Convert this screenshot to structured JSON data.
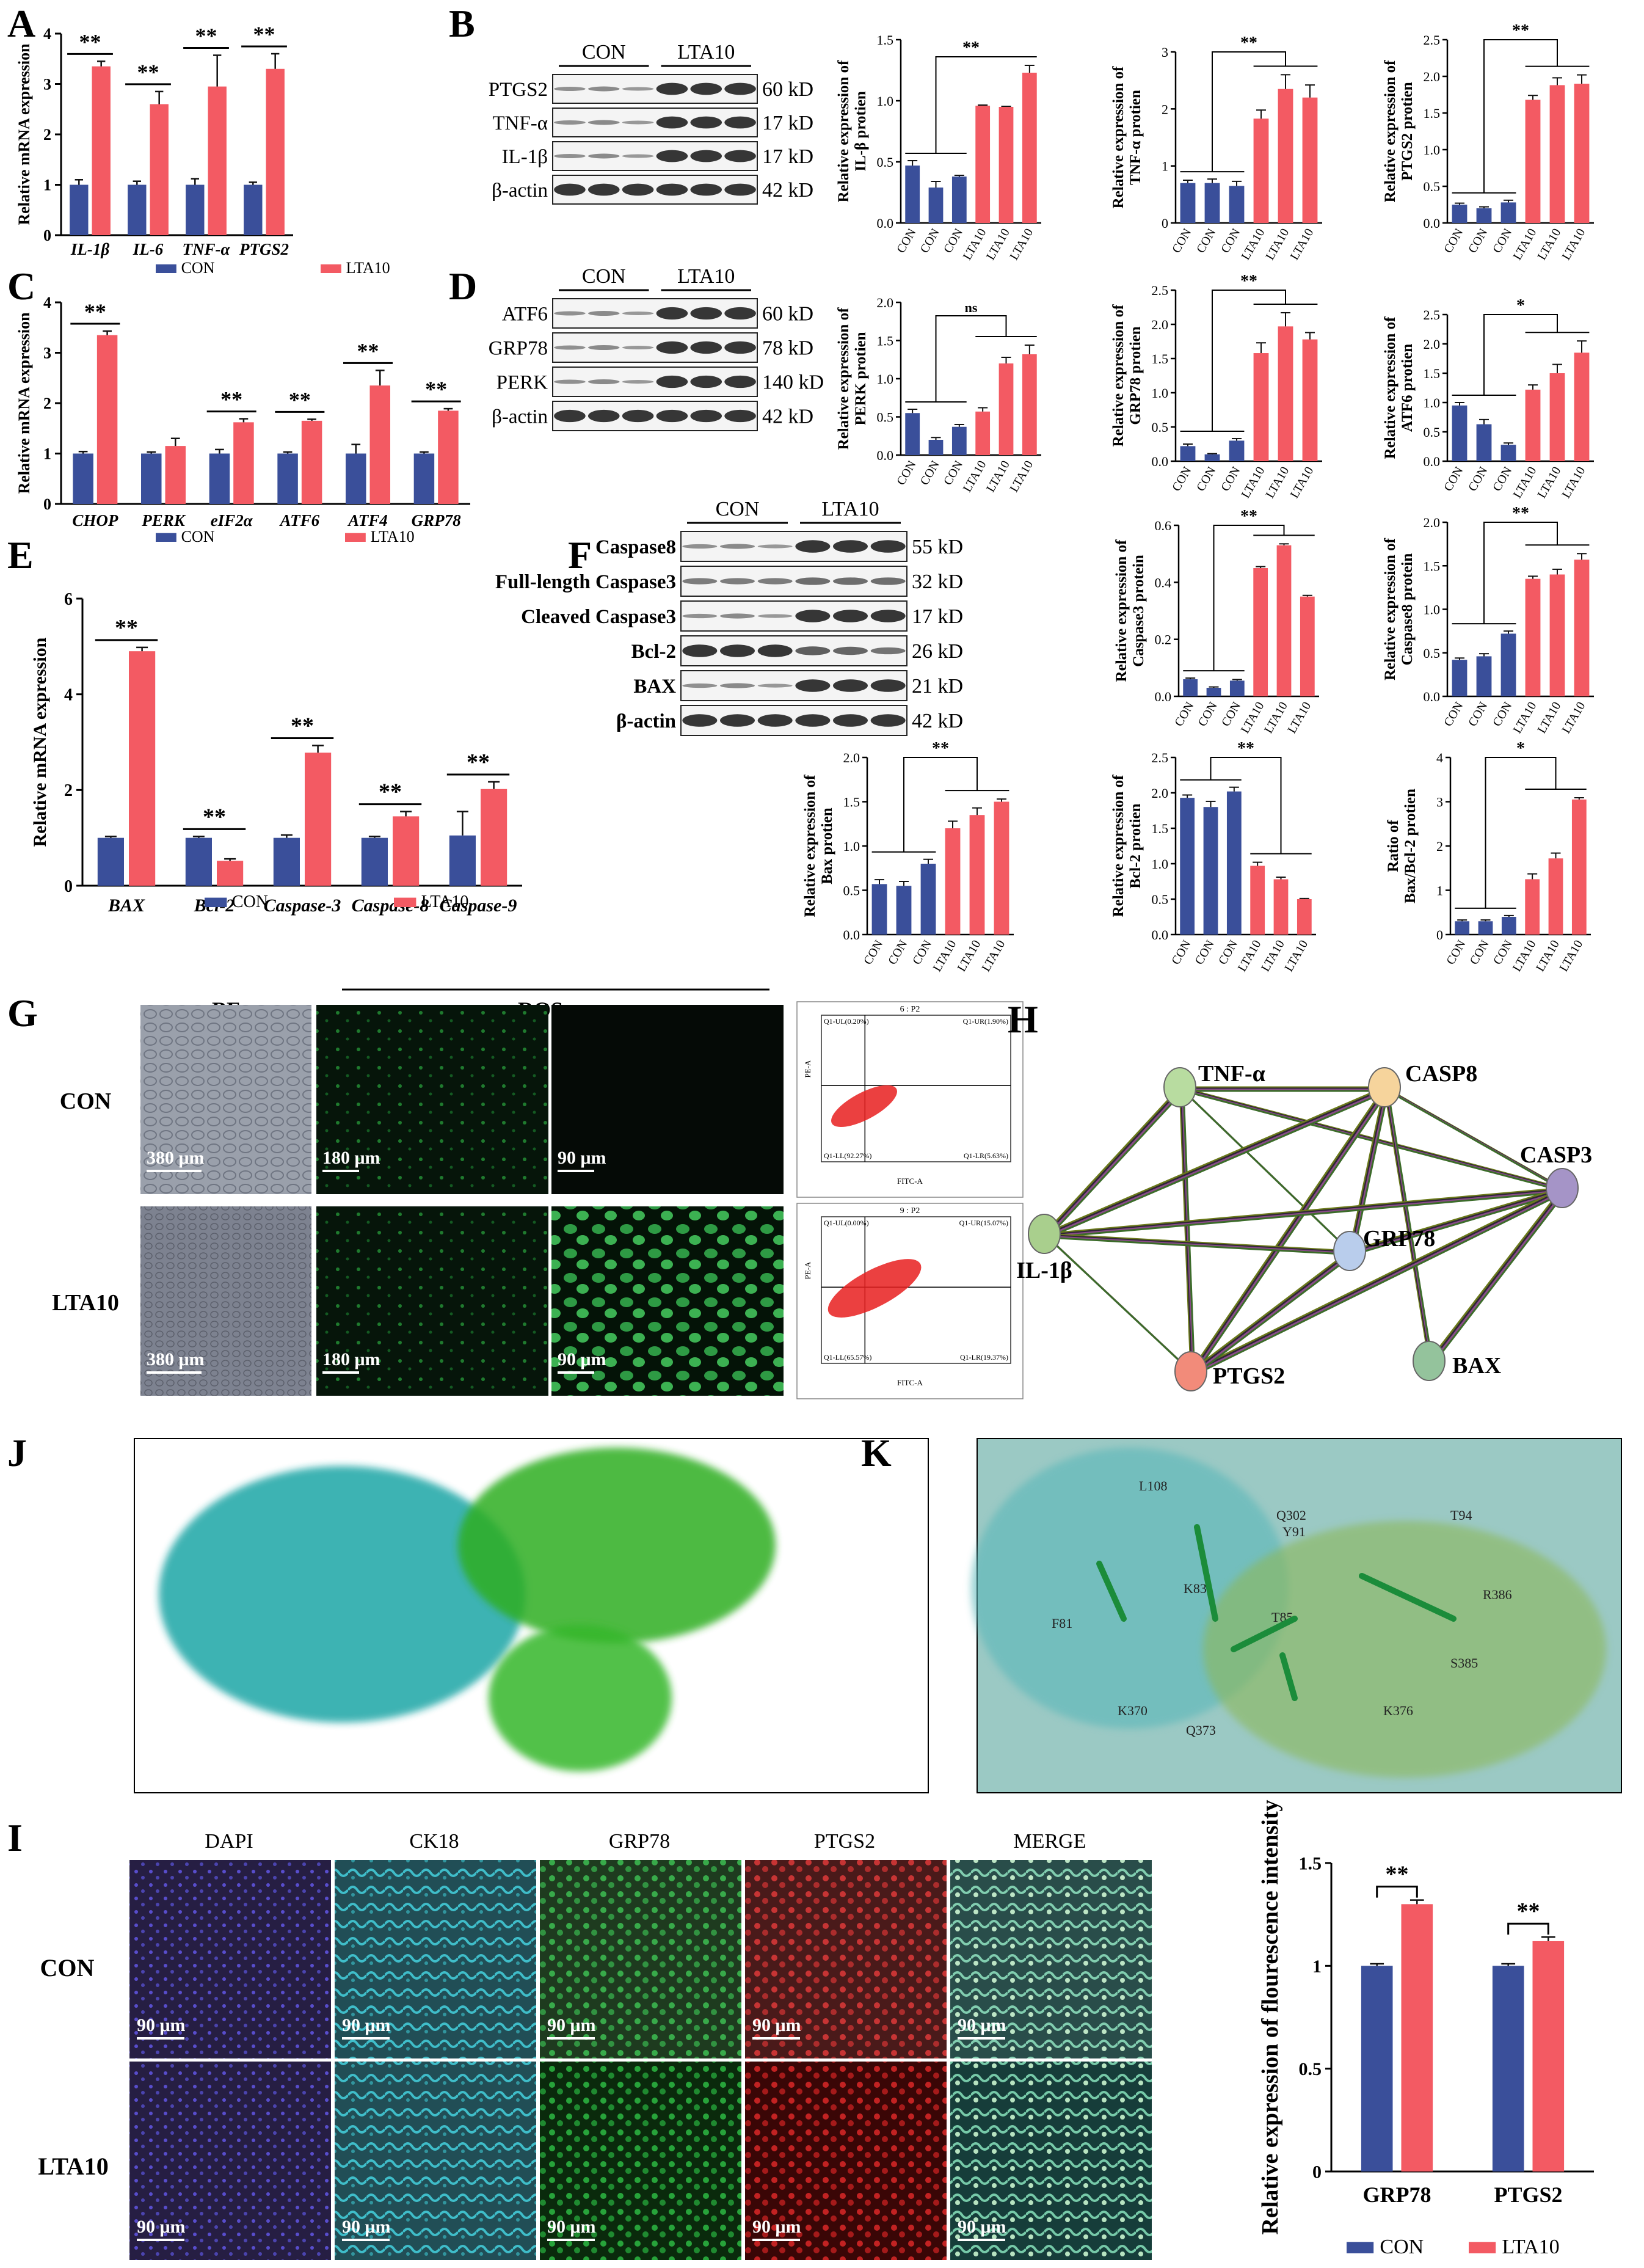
{
  "colors": {
    "con": "#3a4f9a",
    "lta": "#f35a63",
    "err": "#111111",
    "protein": "#eaeaea",
    "band": "#2b2b2b",
    "lineCon": "#555555"
  },
  "panel_labels": {
    "A": "A",
    "B": "B",
    "C": "C",
    "D": "D",
    "E": "E",
    "F": "F",
    "G": "G",
    "H": "H",
    "I": "I",
    "J": "J",
    "K": "K"
  },
  "legend": {
    "con": "CON",
    "lta": "LTA10"
  },
  "chart_data": [
    {
      "id": "A",
      "type": "bar",
      "title": "",
      "ylabel": "Relative mRNA expression",
      "categories": [
        "IL-1β",
        "IL-6",
        "TNF-α",
        "PTGS2"
      ],
      "ylim": [
        0,
        4
      ],
      "yticks": [
        0,
        1,
        2,
        3,
        4
      ],
      "series": [
        {
          "name": "CON",
          "values": [
            1.0,
            1.0,
            1.0,
            1.0
          ],
          "errors": [
            0.1,
            0.07,
            0.12,
            0.05
          ]
        },
        {
          "name": "LTA10",
          "values": [
            3.35,
            2.6,
            2.95,
            3.3
          ],
          "errors": [
            0.1,
            0.25,
            0.62,
            0.3
          ]
        }
      ],
      "significance": [
        "**",
        "**",
        "**",
        "**"
      ]
    },
    {
      "id": "C",
      "type": "bar",
      "ylabel": "Relative mRNA expression",
      "categories": [
        "CHOP",
        "PERK",
        "eIF2α",
        "ATF6",
        "ATF4",
        "GRP78"
      ],
      "ylim": [
        0,
        4
      ],
      "yticks": [
        0,
        1,
        2,
        3,
        4
      ],
      "series": [
        {
          "name": "CON",
          "values": [
            1.0,
            1.0,
            1.0,
            1.0,
            1.0,
            1.0
          ],
          "errors": [
            0.04,
            0.03,
            0.08,
            0.03,
            0.18,
            0.03
          ]
        },
        {
          "name": "LTA10",
          "values": [
            3.35,
            1.15,
            1.62,
            1.65,
            2.35,
            1.85
          ],
          "errors": [
            0.08,
            0.15,
            0.07,
            0.03,
            0.3,
            0.04
          ]
        }
      ],
      "significance": [
        "**",
        "",
        "**",
        "**",
        "**",
        "**"
      ]
    },
    {
      "id": "E",
      "type": "bar",
      "ylabel": "Relative mRNA expression",
      "categories": [
        "BAX",
        "Bcl-2",
        "Caspase-3",
        "Caspase-8",
        "Caspase-9"
      ],
      "ylim": [
        0,
        6
      ],
      "yticks": [
        0,
        2,
        4,
        6
      ],
      "series": [
        {
          "name": "CON",
          "values": [
            1.0,
            1.0,
            1.0,
            1.0,
            1.05
          ],
          "errors": [
            0.03,
            0.03,
            0.06,
            0.03,
            0.5
          ]
        },
        {
          "name": "LTA10",
          "values": [
            4.9,
            0.52,
            2.78,
            1.45,
            2.02
          ],
          "errors": [
            0.08,
            0.04,
            0.15,
            0.1,
            0.15
          ]
        }
      ],
      "significance": [
        "**",
        "**",
        "**",
        "**",
        "**"
      ]
    },
    {
      "id": "B1",
      "type": "bar",
      "ylabel": "Relative expression of IL-β protien",
      "categories": [
        "CON",
        "CON",
        "CON",
        "LTA10",
        "LTA10",
        "LTA10"
      ],
      "values": [
        0.47,
        0.29,
        0.38,
        0.96,
        0.95,
        1.23
      ],
      "errors": [
        0.04,
        0.05,
        0.01,
        0.005,
        0.005,
        0.06
      ],
      "ylim": [
        0,
        1.5
      ],
      "yticks": [
        0.0,
        0.5,
        1.0,
        1.5
      ],
      "significance": "**"
    },
    {
      "id": "B2",
      "type": "bar",
      "ylabel": "Relative expression of TNF-α protien",
      "categories": [
        "CON",
        "CON",
        "CON",
        "LTA10",
        "LTA10",
        "LTA10"
      ],
      "values": [
        0.7,
        0.7,
        0.65,
        1.83,
        2.35,
        2.2
      ],
      "errors": [
        0.05,
        0.07,
        0.08,
        0.15,
        0.25,
        0.22
      ],
      "ylim": [
        0,
        3
      ],
      "yticks": [
        0,
        1,
        2,
        3
      ],
      "significance": "**"
    },
    {
      "id": "B3",
      "type": "bar",
      "ylabel": "Relative expression of PTGS2 protien",
      "categories": [
        "CON",
        "CON",
        "CON",
        "LTA10",
        "LTA10",
        "LTA10"
      ],
      "values": [
        0.25,
        0.2,
        0.28,
        1.68,
        1.88,
        1.9
      ],
      "errors": [
        0.02,
        0.02,
        0.03,
        0.06,
        0.1,
        0.12
      ],
      "ylim": [
        0,
        2.5
      ],
      "yticks": [
        0.0,
        0.5,
        1.0,
        1.5,
        2.0,
        2.5
      ],
      "significance": "**"
    },
    {
      "id": "D1",
      "type": "bar",
      "ylabel": "Relative expression of PERK protien",
      "categories": [
        "CON",
        "CON",
        "CON",
        "LTA10",
        "LTA10",
        "LTA10"
      ],
      "values": [
        0.55,
        0.2,
        0.37,
        0.57,
        1.2,
        1.32
      ],
      "errors": [
        0.05,
        0.03,
        0.03,
        0.05,
        0.08,
        0.12
      ],
      "ylim": [
        0,
        2.0
      ],
      "yticks": [
        0.0,
        0.5,
        1.0,
        1.5,
        2.0
      ],
      "significance": "ns"
    },
    {
      "id": "D2",
      "type": "bar",
      "ylabel": "Relative expression of GRP78 protien",
      "categories": [
        "CON",
        "CON",
        "CON",
        "LTA10",
        "LTA10",
        "LTA10"
      ],
      "values": [
        0.22,
        0.1,
        0.3,
        1.58,
        1.97,
        1.78
      ],
      "errors": [
        0.03,
        0.01,
        0.03,
        0.15,
        0.2,
        0.1
      ],
      "ylim": [
        0,
        2.5
      ],
      "yticks": [
        0.0,
        0.5,
        1.0,
        1.5,
        2.0,
        2.5
      ],
      "significance": "**"
    },
    {
      "id": "D3",
      "type": "bar",
      "ylabel": "Relative expression of ATF6 protien",
      "categories": [
        "CON",
        "CON",
        "CON",
        "LTA10",
        "LTA10",
        "LTA10"
      ],
      "values": [
        0.95,
        0.63,
        0.28,
        1.22,
        1.5,
        1.85
      ],
      "errors": [
        0.05,
        0.08,
        0.03,
        0.08,
        0.15,
        0.2
      ],
      "ylim": [
        0,
        2.5
      ],
      "yticks": [
        0.0,
        0.5,
        1.0,
        1.5,
        2.0,
        2.5
      ],
      "significance": "*"
    },
    {
      "id": "F1",
      "type": "bar",
      "ylabel": "Relative expression of Caspase3 protein",
      "categories": [
        "CON",
        "CON",
        "CON",
        "LTA10",
        "LTA10",
        "LTA10"
      ],
      "values": [
        0.06,
        0.03,
        0.055,
        0.45,
        0.53,
        0.35
      ],
      "errors": [
        0.004,
        0.003,
        0.004,
        0.005,
        0.005,
        0.004
      ],
      "ylim": [
        0,
        0.6
      ],
      "yticks": [
        0.0,
        0.2,
        0.4,
        0.6
      ],
      "significance": "**"
    },
    {
      "id": "F2",
      "type": "bar",
      "ylabel": "Relative expression of Caspase8 protein",
      "categories": [
        "CON",
        "CON",
        "CON",
        "LTA10",
        "LTA10",
        "LTA10"
      ],
      "values": [
        0.42,
        0.46,
        0.72,
        1.35,
        1.4,
        1.57
      ],
      "errors": [
        0.02,
        0.03,
        0.03,
        0.03,
        0.06,
        0.07
      ],
      "ylim": [
        0,
        2.0
      ],
      "yticks": [
        0.0,
        0.5,
        1.0,
        1.5,
        2.0
      ],
      "significance": "**"
    },
    {
      "id": "F3",
      "type": "bar",
      "ylabel": "Relative expression of Bax protien",
      "categories": [
        "CON",
        "CON",
        "CON",
        "LTA10",
        "LTA10",
        "LTA10"
      ],
      "values": [
        0.57,
        0.55,
        0.8,
        1.2,
        1.35,
        1.5
      ],
      "errors": [
        0.05,
        0.05,
        0.05,
        0.08,
        0.08,
        0.03
      ],
      "ylim": [
        0,
        2.0
      ],
      "yticks": [
        0.0,
        0.5,
        1.0,
        1.5,
        2.0
      ],
      "significance": "**"
    },
    {
      "id": "F4",
      "type": "bar",
      "ylabel": "Relative expression of Bcl-2 protien",
      "categories": [
        "CON",
        "CON",
        "CON",
        "LTA10",
        "LTA10",
        "LTA10"
      ],
      "values": [
        1.93,
        1.8,
        2.02,
        0.97,
        0.78,
        0.5
      ],
      "errors": [
        0.04,
        0.08,
        0.06,
        0.05,
        0.03,
        0.01
      ],
      "ylim": [
        0,
        2.5
      ],
      "yticks": [
        0.0,
        0.5,
        1.0,
        1.5,
        2.0,
        2.5
      ],
      "significance": "**"
    },
    {
      "id": "F5",
      "type": "bar",
      "ylabel": "Ratio of Bax/Bcl-2 protien",
      "categories": [
        "CON",
        "CON",
        "CON",
        "LTA10",
        "LTA10",
        "LTA10"
      ],
      "values": [
        0.3,
        0.3,
        0.4,
        1.25,
        1.72,
        3.05
      ],
      "errors": [
        0.03,
        0.03,
        0.03,
        0.12,
        0.12,
        0.04
      ],
      "ylim": [
        0,
        4
      ],
      "yticks": [
        0,
        1,
        2,
        3,
        4
      ],
      "significance": "*"
    },
    {
      "id": "I",
      "type": "bar",
      "ylabel": "Relative expression of flourescence intensity",
      "categories": [
        "GRP78",
        "PTGS2"
      ],
      "ylim": [
        0,
        1.5
      ],
      "yticks": [
        0.0,
        0.5,
        1.0,
        1.5
      ],
      "series": [
        {
          "name": "CON",
          "values": [
            1.0,
            1.0
          ],
          "errors": [
            0.01,
            0.01
          ]
        },
        {
          "name": "LTA10",
          "values": [
            1.3,
            1.12
          ],
          "errors": [
            0.02,
            0.02
          ]
        }
      ],
      "significance": [
        "**",
        "**"
      ]
    }
  ],
  "blots": {
    "B": {
      "header": [
        "CON",
        "LTA10"
      ],
      "rows": [
        {
          "name": "PTGS2",
          "kd": "60 kD"
        },
        {
          "name": "TNF-α",
          "kd": "17 kD"
        },
        {
          "name": "IL-1β",
          "kd": "17 kD"
        },
        {
          "name": "β-actin",
          "kd": "42 kD"
        }
      ]
    },
    "D": {
      "header": [
        "CON",
        "LTA10"
      ],
      "rows": [
        {
          "name": "ATF6",
          "kd": "60 kD"
        },
        {
          "name": "GRP78",
          "kd": "78 kD"
        },
        {
          "name": "PERK",
          "kd": "140 kD"
        },
        {
          "name": "β-actin",
          "kd": "42 kD"
        }
      ]
    },
    "F": {
      "header": [
        "CON",
        "LTA10"
      ],
      "rows": [
        {
          "name": "Caspase8",
          "kd": "55 kD"
        },
        {
          "name": "Full-length Caspase3",
          "kd": "32 kD"
        },
        {
          "name": "Cleaved Caspase3",
          "kd": "17 kD"
        },
        {
          "name": "Bcl-2",
          "kd": "26 kD"
        },
        {
          "name": "BAX",
          "kd": "21 kD"
        },
        {
          "name": "β-actin",
          "kd": "42 kD"
        }
      ]
    }
  },
  "panelG": {
    "bf": "BF",
    "ros": "ROS",
    "rows": [
      "CON",
      "LTA10"
    ],
    "scales": [
      "380 μm",
      "180 μm",
      "90 μm"
    ],
    "flow": [
      {
        "ul": "Q1-UL(0.20%)",
        "ur": "Q1-UR(1.90%)",
        "ll": "Q1-LL(92.27%)",
        "lr": "Q1-LR(5.63%)",
        "title": "6 : P2",
        "xlab": "FITC-A",
        "ylab": "PE-A"
      },
      {
        "ul": "Q1-UL(0.00%)",
        "ur": "Q1-UR(15.07%)",
        "ll": "Q1-LL(65.57%)",
        "lr": "Q1-LR(19.37%)",
        "title": "9 : P2",
        "xlab": "FITC-A",
        "ylab": "PE-A"
      }
    ]
  },
  "panelH": {
    "nodes": [
      "TNF-α",
      "CASP8",
      "CASP3",
      "GRP78",
      "IL-1β",
      "PTGS2",
      "BAX"
    ]
  },
  "panelK": {
    "residues": [
      "L108",
      "Q302",
      "Y91",
      "T94",
      "K83",
      "R386",
      "F81",
      "T85",
      "S385",
      "K370",
      "Q373",
      "K376"
    ]
  },
  "panelI": {
    "columns": [
      "DAPI",
      "CK18",
      "GRP78",
      "PTGS2",
      "MERGE"
    ],
    "rows": [
      "CON",
      "LTA10"
    ],
    "scale": "90 μm"
  }
}
